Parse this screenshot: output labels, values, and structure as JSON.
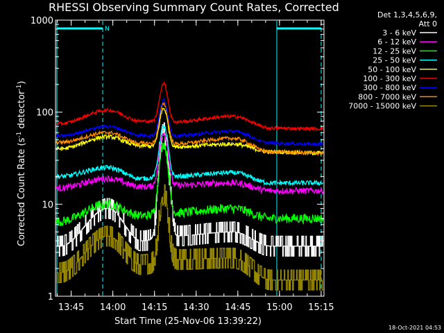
{
  "chart_data": {
    "type": "line",
    "title": "RHESSI Observing Summary Count Rates, Corrected",
    "xlabel": "Start Time (25-Nov-06 13:39:22)",
    "ylabel_main": "Corrected Count Rate (s",
    "ylabel_sup1": "-1",
    "ylabel_mid": " detector",
    "ylabel_sup2": "-1",
    "ylabel_end": ")",
    "ylim": [
      1,
      1000
    ],
    "yscale": "log",
    "yticks": [
      {
        "value": 1,
        "label": "1"
      },
      {
        "value": 10,
        "label": "10"
      },
      {
        "value": 100,
        "label": "100"
      },
      {
        "value": 1000,
        "label": "1000"
      }
    ],
    "xlim": [
      13.656,
      15.267
    ],
    "xticks": [
      {
        "value": 13.75,
        "label": "13:45"
      },
      {
        "value": 14.0,
        "label": "14:00"
      },
      {
        "value": 14.25,
        "label": "14:15"
      },
      {
        "value": 14.5,
        "label": "14:30"
      },
      {
        "value": 14.75,
        "label": "14:45"
      },
      {
        "value": 15.0,
        "label": "15:00"
      },
      {
        "value": 15.25,
        "label": "15:15"
      }
    ],
    "legend_header": [
      "Det 1,3,4,5,6,9,",
      "Att 0"
    ],
    "legend_position": "right",
    "night_marker": "N",
    "footer_date": "18-Oct-2021 04:53",
    "series": [
      {
        "name": "3 - 6 keV",
        "color": "#ffffff",
        "base": [
          3.5,
          9,
          4,
          4.5,
          5,
          3.5,
          3.5
        ],
        "peak": 60,
        "noise": 0.25,
        "step": true
      },
      {
        "name": "6 - 12 keV",
        "color": "#ff00ff",
        "base": [
          15,
          19,
          15.5,
          16,
          17,
          14,
          14
        ],
        "peak": 60,
        "noise": 0.08
      },
      {
        "name": "12 - 25 keV",
        "color": "#00ff00",
        "base": [
          6.5,
          10,
          7.5,
          8,
          9,
          7,
          7
        ],
        "peak": 45,
        "noise": 0.12
      },
      {
        "name": "25 - 50 keV",
        "color": "#00ffff",
        "base": [
          20,
          25,
          19,
          20,
          22,
          17,
          17
        ],
        "peak": 70,
        "noise": 0.06
      },
      {
        "name": "50 - 100 keV",
        "color": "#ffff00",
        "base": [
          40,
          54,
          43,
          42,
          45,
          37,
          36
        ],
        "peak": 110,
        "noise": 0.05
      },
      {
        "name": "100 - 300 keV",
        "color": "#ff0000",
        "base": [
          75,
          105,
          80,
          78,
          90,
          67,
          66
        ],
        "peak": 205,
        "noise": 0.04
      },
      {
        "name": "300 - 800 keV",
        "color": "#0000ff",
        "base": [
          55,
          70,
          56,
          55,
          62,
          46,
          45
        ],
        "peak": 135,
        "noise": 0.04
      },
      {
        "name": "800 - 7000 keV",
        "color": "#ff8c00",
        "base": [
          47,
          60,
          46,
          45,
          52,
          37,
          36
        ],
        "peak": 125,
        "noise": 0.045
      },
      {
        "name": "7000 - 15000 keV",
        "color": "#9a8a00",
        "base": [
          1.8,
          4.5,
          2.2,
          2.5,
          2.6,
          1.5,
          1.5
        ],
        "peak": 13,
        "noise": 0.35,
        "step": true
      }
    ]
  }
}
